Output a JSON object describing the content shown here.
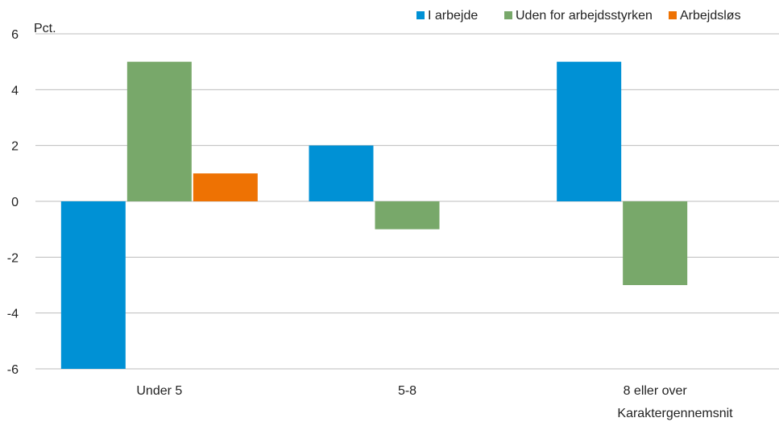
{
  "chart_data": {
    "type": "bar",
    "ylabel": "Pct.",
    "xlabel": "Karaktergennemsnit",
    "categories": [
      "Under 5",
      "5-8",
      "8 eller over"
    ],
    "series": [
      {
        "name": "I arbejde",
        "color": "#0091D5",
        "values": [
          -6,
          2,
          5
        ]
      },
      {
        "name": "Uden for arbejdsstyrken",
        "color": "#78A86A",
        "values": [
          5,
          -1,
          -3
        ]
      },
      {
        "name": "Arbejdsløs",
        "color": "#EE7203",
        "values": [
          1,
          0,
          0
        ]
      }
    ],
    "ylim": [
      -6,
      6
    ],
    "yticks": [
      -6,
      -4,
      -2,
      0,
      2,
      4,
      6
    ],
    "grid": true,
    "legend": "top-right"
  }
}
